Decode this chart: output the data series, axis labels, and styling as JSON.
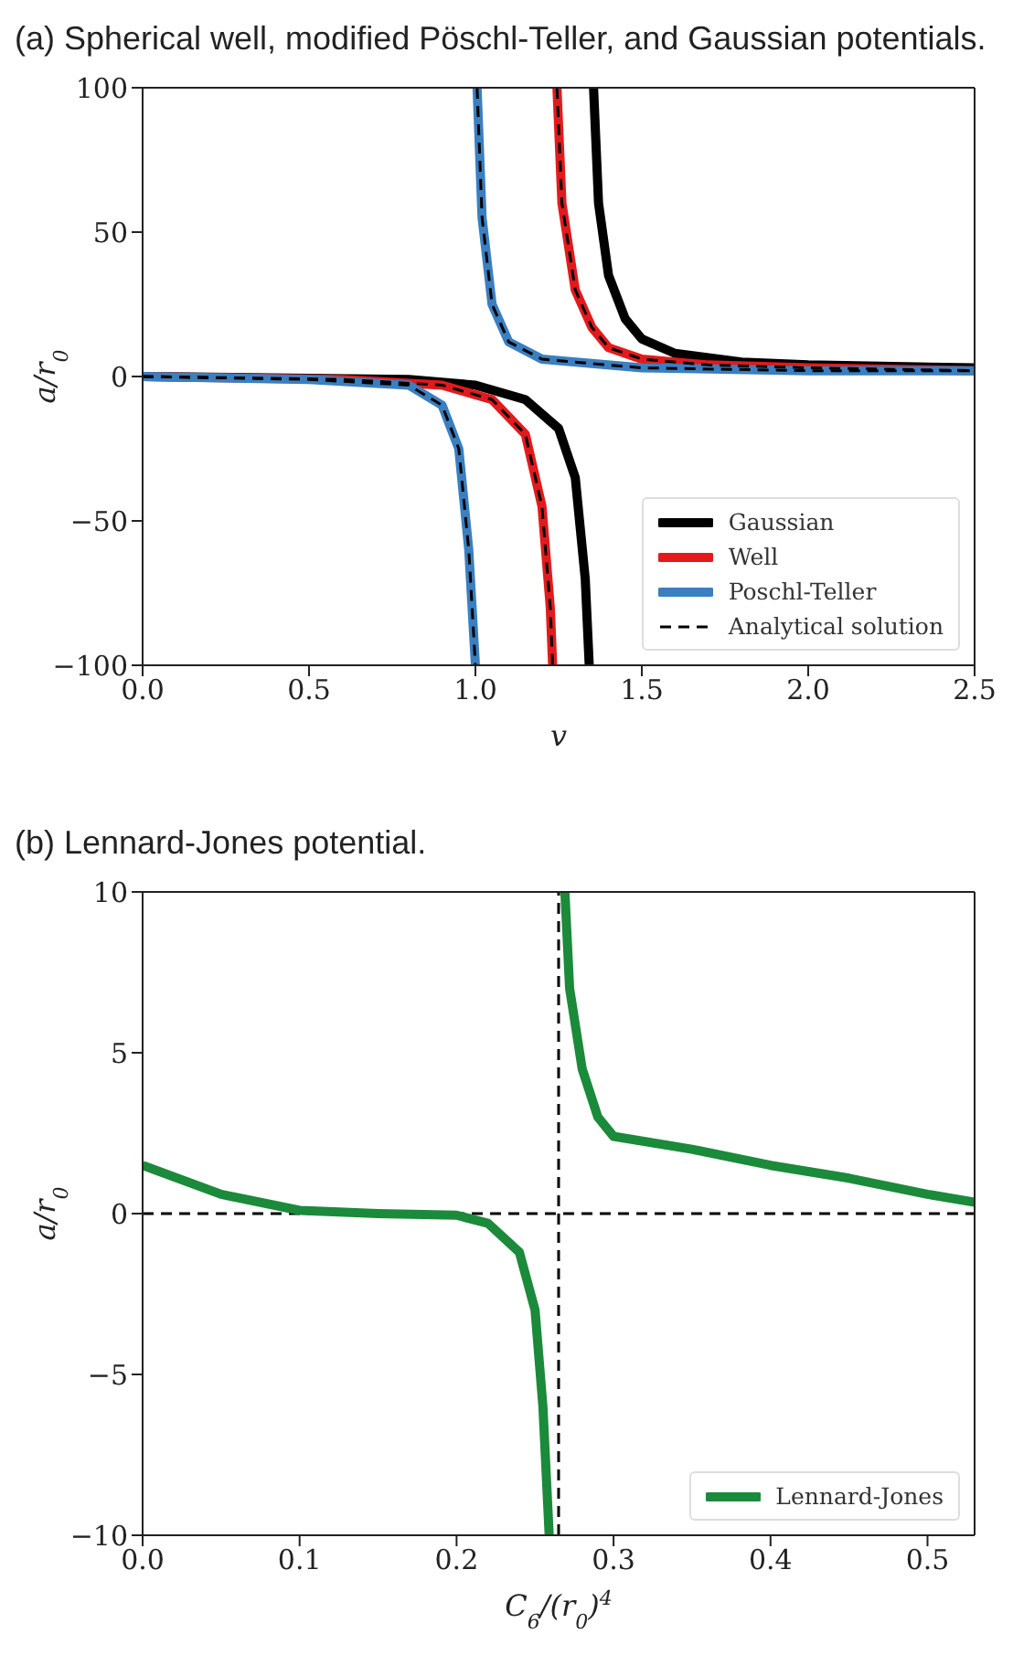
{
  "chart_data": [
    {
      "type": "line",
      "title": "(a) Spherical well, modified Pöschl-Teller, and Gaussian potentials.",
      "xlabel": "v",
      "ylabel": "a/r$_{0}$",
      "xlim": [
        0,
        2.5
      ],
      "ylim": [
        -100,
        100
      ],
      "xticks": [
        {
          "value": 0,
          "label": "0.0"
        },
        0.5,
        {
          "value": 1,
          "label": "1.0"
        },
        1.5,
        {
          "value": 2,
          "label": "2.0"
        },
        2.5
      ],
      "yticks": [
        -100,
        -50,
        0,
        50,
        100
      ],
      "grid": false,
      "legend": "bottom right",
      "marker": "none",
      "series": [
        {
          "name": "Gaussian",
          "color": "#000000",
          "line_style": "solid",
          "x": [
            0,
            0.8,
            1.0,
            1.15,
            1.25,
            1.3,
            1.33,
            1.342,
            1.348,
            1.355,
            1.37,
            1.4,
            1.45,
            1.5,
            1.6,
            1.8,
            2.0,
            2.5
          ],
          "values": [
            0,
            -1,
            -3,
            -8,
            -18,
            -35,
            -70,
            -100,
            null,
            100,
            60,
            35,
            20,
            13,
            8,
            5,
            4,
            3
          ]
        },
        {
          "name": "Well",
          "color": "#e31a1c",
          "line_style": "solid",
          "x": [
            0,
            0.6,
            0.9,
            1.05,
            1.15,
            1.2,
            1.225,
            1.232,
            1.238,
            1.245,
            1.26,
            1.3,
            1.35,
            1.4,
            1.5,
            1.7,
            2.0,
            2.5
          ],
          "values": [
            0,
            -1,
            -3,
            -8,
            -20,
            -45,
            -80,
            -100,
            null,
            100,
            60,
            30,
            17,
            10,
            6,
            4,
            3,
            2
          ]
        },
        {
          "name": "Poschl-Teller",
          "color": "#3a7fc0",
          "line_style": "solid",
          "x": [
            0,
            0.5,
            0.8,
            0.9,
            0.95,
            0.98,
            1.0,
            1.003,
            1.005,
            1.02,
            1.05,
            1.1,
            1.2,
            1.5,
            2.0,
            2.5
          ],
          "values": [
            0,
            -1,
            -3,
            -10,
            -25,
            -60,
            -100,
            null,
            100,
            55,
            25,
            12,
            6,
            3,
            2,
            2
          ]
        },
        {
          "name": "Analytical solution",
          "color": "#000000",
          "line_style": "dashed",
          "x": [
            0,
            0.6,
            0.9,
            1.05,
            1.15,
            1.2,
            1.225,
            1.232,
            1.238,
            1.245,
            1.26,
            1.3,
            1.35,
            1.4,
            1.5,
            1.7,
            2.0,
            2.5
          ],
          "values": [
            0,
            -1,
            -3,
            -8,
            -20,
            -45,
            -80,
            -100,
            null,
            100,
            60,
            30,
            17,
            10,
            6,
            4,
            3,
            2
          ]
        },
        {
          "color": "#000000",
          "line_style": "dashed",
          "x": [
            0,
            0.5,
            0.8,
            0.9,
            0.95,
            0.98,
            1.0,
            1.003,
            1.005,
            1.02,
            1.05,
            1.1,
            1.2,
            1.5,
            2.0,
            2.5
          ],
          "values": [
            0,
            -1,
            -3,
            -10,
            -25,
            -60,
            -100,
            null,
            100,
            55,
            25,
            12,
            6,
            3,
            2,
            2
          ]
        }
      ]
    },
    {
      "type": "line",
      "title": "(b) Lennard-Jones potential.",
      "xlabel": "C$_{6}$/(r$_{0}$)$^{4}$",
      "ylabel": "a/r$_{0}$",
      "xlim": [
        0,
        0.53
      ],
      "ylim": [
        -10,
        10
      ],
      "xticks": [
        {
          "value": 0,
          "label": "0.0"
        },
        0.1,
        0.2,
        0.3,
        0.4,
        0.5
      ],
      "yticks": [
        -10,
        -5,
        0,
        5,
        10
      ],
      "grid": false,
      "legend": "bottom right",
      "marker": "none",
      "series": [
        {
          "name": "Lennard-Jones",
          "color": "#1b8a3a",
          "line_style": "solid",
          "x": [
            0,
            0.05,
            0.1,
            0.15,
            0.2,
            0.22,
            0.24,
            0.25,
            0.255,
            0.259,
            0.264,
            0.269,
            0.272,
            0.28,
            0.29,
            0.3,
            0.35,
            0.4,
            0.45,
            0.5,
            0.53
          ],
          "values": [
            1.5,
            0.6,
            0.1,
            0,
            -0.05,
            -0.3,
            -1.2,
            -3,
            -6,
            -10,
            null,
            10,
            7,
            4.5,
            3,
            2.4,
            2,
            1.5,
            1.1,
            0.6,
            0.35
          ]
        }
      ],
      "ref_lines": [
        {
          "axis": "y",
          "value": 0,
          "color": "#000000",
          "line_style": "dashed"
        },
        {
          "axis": "x",
          "value": 0.265,
          "color": "#000000",
          "line_style": "dashed"
        }
      ]
    }
  ]
}
